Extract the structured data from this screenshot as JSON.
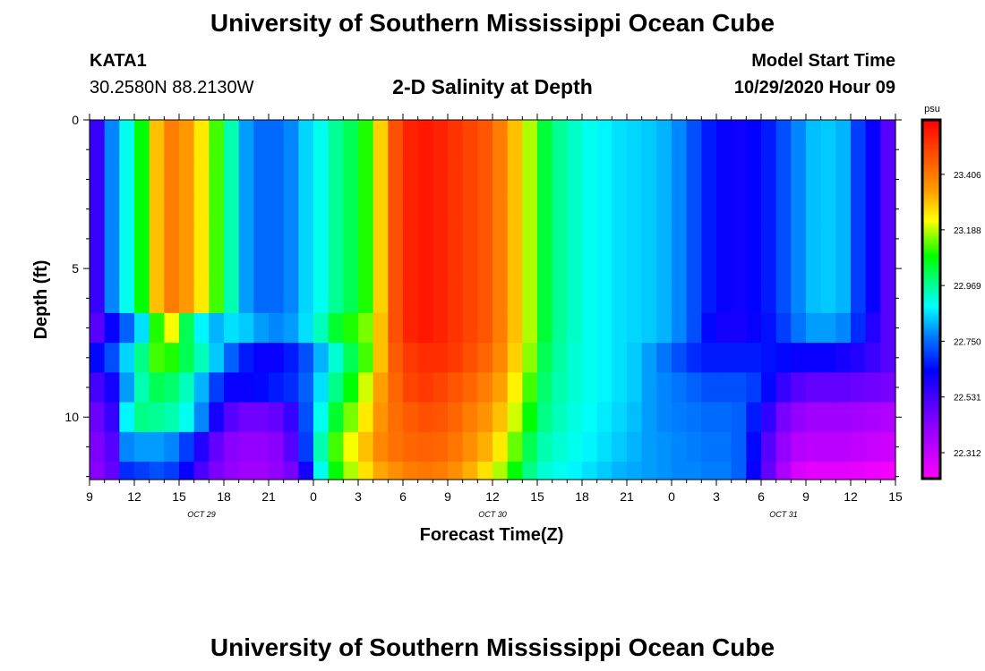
{
  "page": {
    "title_top": "University of Southern Mississippi Ocean Cube",
    "title_bottom": "University of Southern Mississippi Ocean Cube",
    "station_id": "KATA1",
    "station_coords": "30.2580N 88.2130W",
    "subtitle": "2-D Salinity at Depth",
    "model_start_label": "Model Start Time",
    "model_start_value": "10/29/2020 Hour 09"
  },
  "colors": {
    "background": "#ffffff",
    "axis": "#000000"
  },
  "chart_data": {
    "type": "heatmap",
    "title": "2-D Salinity at Depth",
    "xlabel": "Forecast Time(Z)",
    "ylabel": "Depth (ft)",
    "x_tick_labels": [
      "9",
      "12",
      "15",
      "18",
      "21",
      "0",
      "3",
      "6",
      "9",
      "12",
      "15",
      "18",
      "21",
      "0",
      "3",
      "6",
      "9",
      "12",
      "15"
    ],
    "x_tick_hours": [
      0,
      3,
      6,
      9,
      12,
      15,
      18,
      21,
      24,
      27,
      30,
      33,
      36,
      39,
      42,
      45,
      48,
      51,
      54
    ],
    "x_range_hours": [
      0,
      54
    ],
    "date_labels": [
      {
        "text": "OCT 29",
        "hour": 7.5
      },
      {
        "text": "OCT 30",
        "hour": 27
      },
      {
        "text": "OCT 31",
        "hour": 46.5
      }
    ],
    "y_tick_labels": [
      "0",
      "5",
      "10"
    ],
    "y_tick_values": [
      0,
      5,
      10
    ],
    "ylim": [
      0,
      12.1
    ],
    "y_inverted": true,
    "colorbar": {
      "unit": "psu",
      "tick_labels": [
        "23.406",
        "23.188",
        "22.969",
        "22.750",
        "22.531",
        "22.312"
      ],
      "tick_values": [
        23.406,
        23.188,
        22.969,
        22.75,
        22.531,
        22.312
      ],
      "range": [
        22.21,
        23.62
      ]
    },
    "depth_levels_ft": [
      0,
      1,
      2,
      3,
      4,
      5,
      6,
      7,
      8,
      9,
      10,
      11,
      12
    ],
    "time_step_hours": 1,
    "rows": [
      [
        22.55,
        22.78,
        22.9,
        23.08,
        23.3,
        23.4,
        23.35,
        23.25,
        23.12,
        22.95,
        22.8,
        22.75,
        22.75,
        22.78,
        22.85,
        22.9,
        22.97,
        23.02,
        23.1,
        23.28,
        23.48,
        23.56,
        23.58,
        23.56,
        23.53,
        23.5,
        23.47,
        23.4,
        23.3,
        23.18,
        23.04,
        22.97,
        22.93,
        22.9,
        22.88,
        22.86,
        22.85,
        22.84,
        22.82,
        22.78,
        22.72,
        22.66,
        22.62,
        22.61,
        22.63,
        22.66,
        22.72,
        22.78,
        22.83,
        22.84,
        22.82,
        22.7,
        22.62,
        22.5,
        22.45
      ],
      [
        22.55,
        22.78,
        22.9,
        23.08,
        23.3,
        23.4,
        23.35,
        23.25,
        23.12,
        22.95,
        22.8,
        22.75,
        22.75,
        22.78,
        22.85,
        22.9,
        22.97,
        23.02,
        23.1,
        23.28,
        23.48,
        23.56,
        23.58,
        23.56,
        23.53,
        23.5,
        23.47,
        23.4,
        23.3,
        23.18,
        23.04,
        22.97,
        22.93,
        22.9,
        22.88,
        22.86,
        22.85,
        22.84,
        22.82,
        22.78,
        22.72,
        22.66,
        22.62,
        22.61,
        22.63,
        22.66,
        22.72,
        22.78,
        22.83,
        22.84,
        22.82,
        22.7,
        22.62,
        22.5,
        22.45
      ],
      [
        22.55,
        22.78,
        22.9,
        23.08,
        23.3,
        23.4,
        23.35,
        23.25,
        23.12,
        22.95,
        22.8,
        22.75,
        22.75,
        22.78,
        22.85,
        22.9,
        22.97,
        23.02,
        23.1,
        23.28,
        23.48,
        23.56,
        23.58,
        23.56,
        23.53,
        23.5,
        23.47,
        23.4,
        23.3,
        23.18,
        23.04,
        22.97,
        22.93,
        22.9,
        22.88,
        22.86,
        22.85,
        22.84,
        22.82,
        22.78,
        22.72,
        22.66,
        22.62,
        22.61,
        22.63,
        22.66,
        22.72,
        22.78,
        22.83,
        22.84,
        22.82,
        22.7,
        22.62,
        22.5,
        22.45
      ],
      [
        22.55,
        22.78,
        22.9,
        23.08,
        23.3,
        23.4,
        23.35,
        23.25,
        23.12,
        22.95,
        22.8,
        22.75,
        22.75,
        22.78,
        22.85,
        22.9,
        22.97,
        23.02,
        23.1,
        23.28,
        23.48,
        23.56,
        23.58,
        23.56,
        23.53,
        23.5,
        23.47,
        23.4,
        23.3,
        23.18,
        23.04,
        22.97,
        22.93,
        22.9,
        22.88,
        22.86,
        22.85,
        22.84,
        22.82,
        22.78,
        22.72,
        22.66,
        22.62,
        22.61,
        22.63,
        22.66,
        22.72,
        22.78,
        22.83,
        22.84,
        22.82,
        22.7,
        22.62,
        22.5,
        22.45
      ],
      [
        22.55,
        22.78,
        22.9,
        23.08,
        23.3,
        23.4,
        23.35,
        23.25,
        23.12,
        22.95,
        22.8,
        22.75,
        22.75,
        22.78,
        22.85,
        22.9,
        22.97,
        23.02,
        23.1,
        23.28,
        23.48,
        23.56,
        23.58,
        23.56,
        23.53,
        23.5,
        23.47,
        23.4,
        23.3,
        23.18,
        23.04,
        22.97,
        22.93,
        22.9,
        22.88,
        22.86,
        22.85,
        22.84,
        22.82,
        22.78,
        22.72,
        22.66,
        22.62,
        22.61,
        22.63,
        22.66,
        22.72,
        22.78,
        22.83,
        22.84,
        22.82,
        22.7,
        22.62,
        22.5,
        22.45
      ],
      [
        22.55,
        22.78,
        22.9,
        23.08,
        23.3,
        23.4,
        23.35,
        23.25,
        23.12,
        22.95,
        22.8,
        22.75,
        22.75,
        22.78,
        22.85,
        22.9,
        22.97,
        23.02,
        23.1,
        23.28,
        23.48,
        23.56,
        23.58,
        23.56,
        23.53,
        23.5,
        23.47,
        23.4,
        23.3,
        23.18,
        23.04,
        22.97,
        22.93,
        22.9,
        22.88,
        22.86,
        22.85,
        22.84,
        22.82,
        22.78,
        22.72,
        22.66,
        22.62,
        22.61,
        22.63,
        22.66,
        22.72,
        22.78,
        22.83,
        22.84,
        22.82,
        22.7,
        22.62,
        22.5,
        22.45
      ],
      [
        22.55,
        22.78,
        22.9,
        23.08,
        23.3,
        23.4,
        23.35,
        23.25,
        23.12,
        22.95,
        22.8,
        22.75,
        22.75,
        22.78,
        22.85,
        22.9,
        22.97,
        23.02,
        23.1,
        23.28,
        23.48,
        23.56,
        23.58,
        23.56,
        23.53,
        23.5,
        23.47,
        23.4,
        23.3,
        23.18,
        23.04,
        22.97,
        22.93,
        22.9,
        22.88,
        22.86,
        22.85,
        22.84,
        22.82,
        22.78,
        22.72,
        22.66,
        22.62,
        22.61,
        22.63,
        22.66,
        22.72,
        22.78,
        22.83,
        22.84,
        22.82,
        22.7,
        22.62,
        22.5,
        22.45
      ],
      [
        22.5,
        22.62,
        22.74,
        22.86,
        23.1,
        23.22,
        23.02,
        22.88,
        22.82,
        22.86,
        22.84,
        22.8,
        22.78,
        22.8,
        22.86,
        22.94,
        23.05,
        23.1,
        23.15,
        23.3,
        23.48,
        23.56,
        23.58,
        23.56,
        23.53,
        23.5,
        23.47,
        23.4,
        23.3,
        23.18,
        23.04,
        22.97,
        22.93,
        22.9,
        22.88,
        22.86,
        22.85,
        22.84,
        22.82,
        22.78,
        22.72,
        22.64,
        22.6,
        22.6,
        22.62,
        22.65,
        22.7,
        22.76,
        22.8,
        22.8,
        22.78,
        22.68,
        22.58,
        22.5,
        22.45
      ],
      [
        22.64,
        22.72,
        22.85,
        22.98,
        23.12,
        23.1,
        23.02,
        22.94,
        22.84,
        22.74,
        22.66,
        22.62,
        22.62,
        22.66,
        22.72,
        22.82,
        22.92,
        23.02,
        23.12,
        23.3,
        23.46,
        23.52,
        23.54,
        23.54,
        23.52,
        23.48,
        23.44,
        23.38,
        23.28,
        23.16,
        23.02,
        22.96,
        22.92,
        22.9,
        22.88,
        22.86,
        22.84,
        22.8,
        22.76,
        22.72,
        22.68,
        22.66,
        22.66,
        22.66,
        22.66,
        22.65,
        22.64,
        22.62,
        22.62,
        22.62,
        22.6,
        22.58,
        22.54,
        22.5,
        22.45
      ],
      [
        22.53,
        22.6,
        22.8,
        22.95,
        23.02,
        23.0,
        22.94,
        22.82,
        22.7,
        22.62,
        22.62,
        22.64,
        22.66,
        22.68,
        22.74,
        22.86,
        22.98,
        23.08,
        23.2,
        23.34,
        23.44,
        23.5,
        23.52,
        23.5,
        23.47,
        23.44,
        23.4,
        23.34,
        23.24,
        23.12,
        23.0,
        22.95,
        22.92,
        22.9,
        22.88,
        22.86,
        22.84,
        22.8,
        22.78,
        22.76,
        22.74,
        22.72,
        22.72,
        22.72,
        22.7,
        22.64,
        22.55,
        22.5,
        22.48,
        22.48,
        22.48,
        22.47,
        22.46,
        22.45,
        22.45
      ],
      [
        22.47,
        22.55,
        22.88,
        22.98,
        22.97,
        22.95,
        22.9,
        22.78,
        22.6,
        22.5,
        22.46,
        22.46,
        22.48,
        22.55,
        22.72,
        22.9,
        23.05,
        23.15,
        23.25,
        23.36,
        23.43,
        23.46,
        23.48,
        23.47,
        23.44,
        23.4,
        23.36,
        23.3,
        23.2,
        23.08,
        22.98,
        22.94,
        22.91,
        22.89,
        22.87,
        22.85,
        22.83,
        22.8,
        22.78,
        22.77,
        22.76,
        22.75,
        22.75,
        22.74,
        22.66,
        22.56,
        22.45,
        22.4,
        22.38,
        22.38,
        22.38,
        22.37,
        22.36,
        22.35,
        22.35
      ],
      [
        22.44,
        22.5,
        22.78,
        22.8,
        22.8,
        22.78,
        22.7,
        22.58,
        22.48,
        22.42,
        22.4,
        22.4,
        22.42,
        22.5,
        22.7,
        22.95,
        23.12,
        23.22,
        23.3,
        23.38,
        23.42,
        23.44,
        23.45,
        23.44,
        23.41,
        23.37,
        23.32,
        23.25,
        23.14,
        23.02,
        22.95,
        22.92,
        22.9,
        22.88,
        22.86,
        22.84,
        22.82,
        22.8,
        22.79,
        22.78,
        22.77,
        22.76,
        22.76,
        22.74,
        22.64,
        22.5,
        22.4,
        22.34,
        22.33,
        22.33,
        22.33,
        22.32,
        22.31,
        22.3,
        22.3
      ],
      [
        22.42,
        22.48,
        22.68,
        22.7,
        22.72,
        22.7,
        22.62,
        22.52,
        22.44,
        22.4,
        22.38,
        22.38,
        22.4,
        22.45,
        22.6,
        22.9,
        23.08,
        23.18,
        23.26,
        23.33,
        23.37,
        23.4,
        23.41,
        23.4,
        23.37,
        23.32,
        23.26,
        23.18,
        23.08,
        22.98,
        22.92,
        22.9,
        22.88,
        22.86,
        22.84,
        22.82,
        22.81,
        22.8,
        22.79,
        22.78,
        22.78,
        22.77,
        22.77,
        22.74,
        22.62,
        22.48,
        22.36,
        22.28,
        22.26,
        22.26,
        22.26,
        22.25,
        22.24,
        22.23,
        22.23
      ]
    ]
  }
}
